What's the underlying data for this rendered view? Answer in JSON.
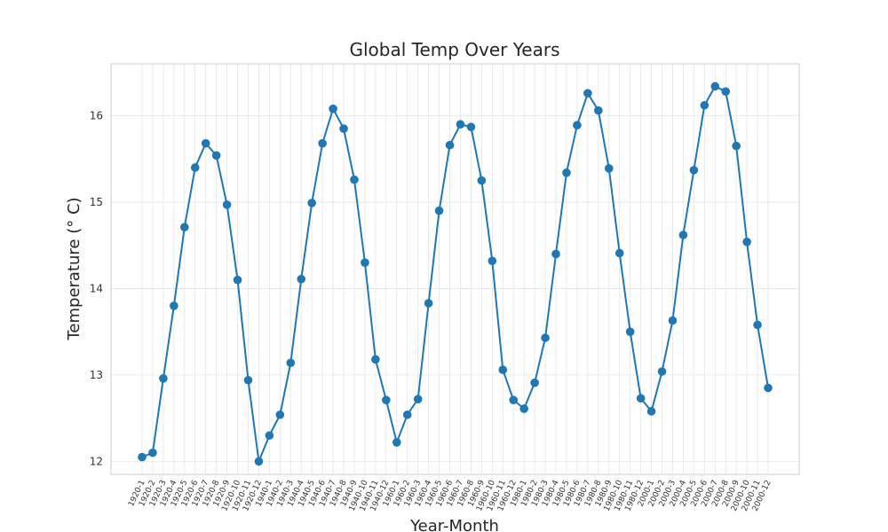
{
  "chart_data": {
    "type": "line",
    "title": "Global Temp Over Years",
    "xlabel": "Year-Month",
    "ylabel": "Temperature (° C)",
    "ylim": [
      11.85,
      16.6
    ],
    "yticks": [
      12,
      13,
      14,
      15,
      16
    ],
    "grid": true,
    "legend": "none",
    "colors": {
      "line": "#1f77b4",
      "marker": "#1f77b4",
      "grid": "#e5e5e5",
      "frame": "#cccccc"
    },
    "categories": [
      "1920-1",
      "1920-2",
      "1920-3",
      "1920-4",
      "1920-5",
      "1920-6",
      "1920-7",
      "1920-8",
      "1920-9",
      "1920-10",
      "1920-11",
      "1920-12",
      "1940-1",
      "1940-2",
      "1940-3",
      "1940-4",
      "1940-5",
      "1940-6",
      "1940-7",
      "1940-8",
      "1940-9",
      "1940-10",
      "1940-11",
      "1940-12",
      "1960-1",
      "1960-2",
      "1960-3",
      "1960-4",
      "1960-5",
      "1960-6",
      "1960-7",
      "1960-8",
      "1960-9",
      "1960-10",
      "1960-11",
      "1960-12",
      "1980-1",
      "1980-2",
      "1980-3",
      "1980-4",
      "1980-5",
      "1980-6",
      "1980-7",
      "1980-8",
      "1980-9",
      "1980-10",
      "1980-11",
      "1980-12",
      "2000-1",
      "2000-2",
      "2000-3",
      "2000-4",
      "2000-5",
      "2000-6",
      "2000-7",
      "2000-8",
      "2000-9",
      "2000-10",
      "2000-11",
      "2000-12"
    ],
    "series": [
      {
        "values": [
          12.05,
          12.1,
          12.96,
          13.8,
          14.71,
          15.4,
          15.68,
          15.54,
          14.97,
          14.1,
          12.94,
          12.0,
          12.3,
          12.54,
          13.14,
          14.11,
          14.99,
          15.68,
          16.08,
          15.85,
          15.26,
          14.3,
          13.18,
          12.71,
          12.22,
          12.54,
          12.72,
          13.83,
          14.9,
          15.66,
          15.9,
          15.87,
          15.25,
          14.32,
          13.06,
          12.71,
          12.61,
          12.91,
          13.43,
          14.4,
          15.34,
          15.89,
          16.26,
          16.06,
          15.39,
          14.41,
          13.5,
          12.73,
          12.58,
          13.04,
          13.63,
          14.62,
          15.37,
          16.12,
          16.34,
          16.28,
          15.65,
          14.54,
          13.58,
          12.85
        ]
      }
    ]
  }
}
